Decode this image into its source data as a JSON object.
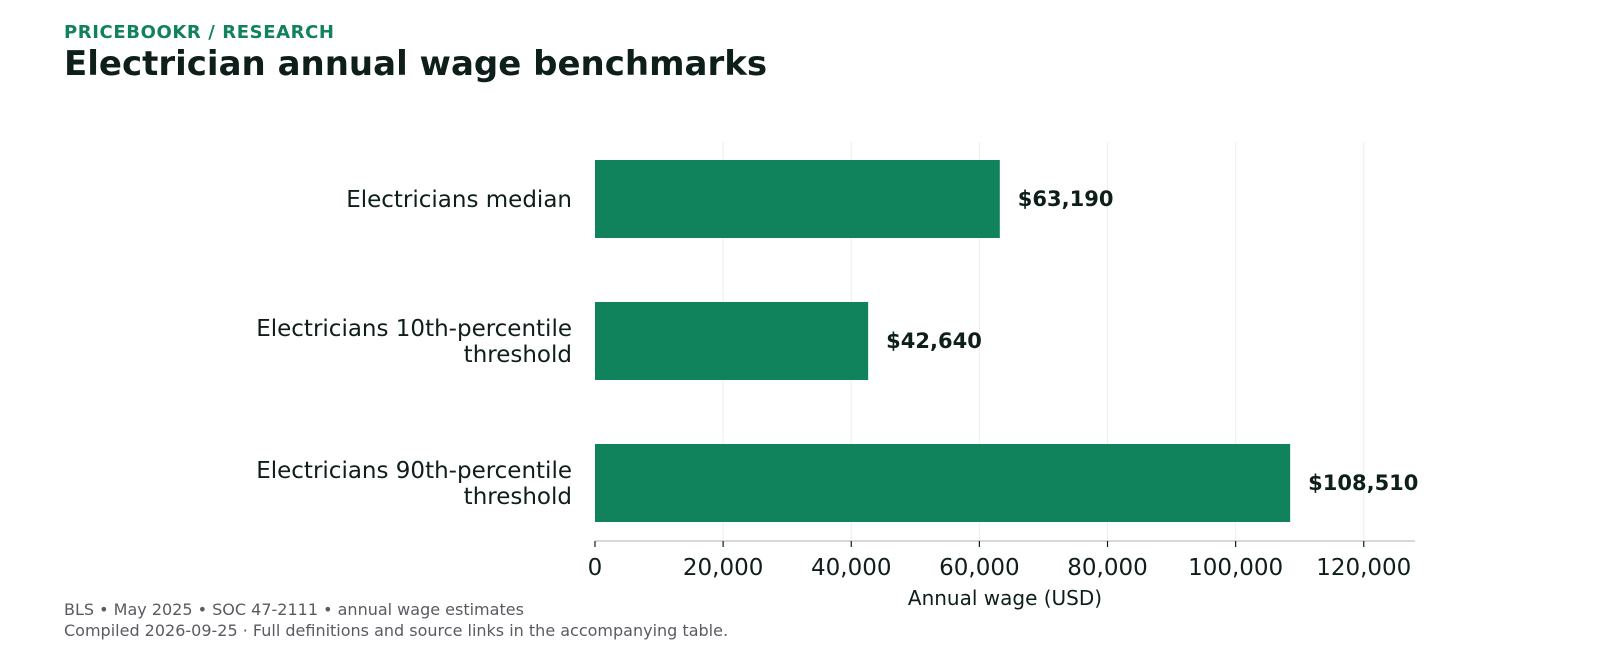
{
  "header": {
    "eyebrow": "PRICEBOOKR / RESEARCH",
    "title": "Electrician annual wage benchmarks"
  },
  "footer": {
    "line1": "BLS • May 2025 • SOC 47-2111 • annual wage estimates",
    "line2": "Compiled 2026-09-25 · Full definitions and source links in the accompanying table."
  },
  "colors": {
    "bar": "#10825c",
    "text": "#0e1e1a",
    "grid": "#eeeeee",
    "axis": "#cccccc",
    "eyebrow": "#10825c",
    "footer": "#5a5a62"
  },
  "chart_data": {
    "type": "bar",
    "orientation": "horizontal",
    "categories": [
      [
        "Electricians median"
      ],
      [
        "Electricians 10th-percentile",
        "threshold"
      ],
      [
        "Electricians 90th-percentile",
        "threshold"
      ]
    ],
    "values": [
      63190,
      42640,
      108510
    ],
    "value_labels": [
      "$63,190",
      "$42,640",
      "$108,510"
    ],
    "xlabel": "Annual wage (USD)",
    "ylabel": "",
    "xlim": [
      0,
      128000
    ],
    "xticks": [
      0,
      20000,
      40000,
      60000,
      80000,
      100000,
      120000
    ],
    "xtick_labels": [
      "0",
      "20,000",
      "40,000",
      "60,000",
      "80,000",
      "100,000",
      "120,000"
    ],
    "grid": "vertical",
    "legend": "none"
  }
}
